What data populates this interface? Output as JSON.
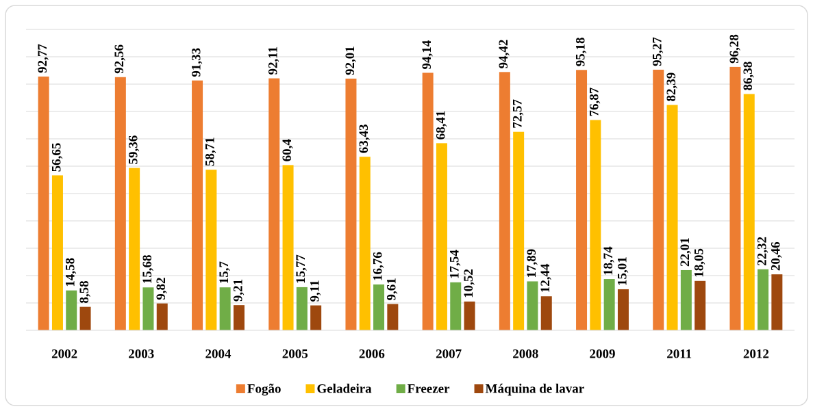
{
  "chart_data": {
    "type": "bar",
    "categories": [
      "2002",
      "2003",
      "2004",
      "2005",
      "2006",
      "2007",
      "2008",
      "2009",
      "2011",
      "2012"
    ],
    "series": [
      {
        "name": "Fogão",
        "color": "#ed7d31",
        "values": [
          92.77,
          92.56,
          91.33,
          92.11,
          92.01,
          94.14,
          94.42,
          95.18,
          95.27,
          96.28
        ],
        "value_labels": [
          "92,77",
          "92,56",
          "91,33",
          "92,11",
          "92,01",
          "94,14",
          "94,42",
          "95,18",
          "95,27",
          "96,28"
        ]
      },
      {
        "name": "Geladeira",
        "color": "#ffc000",
        "values": [
          56.65,
          59.36,
          58.71,
          60.4,
          63.43,
          68.41,
          72.57,
          76.87,
          82.39,
          86.38
        ],
        "value_labels": [
          "56,65",
          "59,36",
          "58,71",
          "60,4",
          "63,43",
          "68,41",
          "72,57",
          "76,87",
          "82,39",
          "86,38"
        ]
      },
      {
        "name": "Freezer",
        "color": "#70ad47",
        "values": [
          14.58,
          15.68,
          15.7,
          15.77,
          16.76,
          17.54,
          17.89,
          18.74,
          22.01,
          22.32
        ],
        "value_labels": [
          "14,58",
          "15,68",
          "15,7",
          "15,77",
          "16,76",
          "17,54",
          "17,89",
          "18,74",
          "22,01",
          "22,32"
        ]
      },
      {
        "name": "Máquina de lavar",
        "color": "#9e480e",
        "values": [
          8.58,
          9.82,
          9.21,
          9.11,
          9.61,
          10.52,
          12.44,
          15.01,
          18.05,
          20.46
        ],
        "value_labels": [
          "8,58",
          "9,82",
          "9,21",
          "9,11",
          "9,61",
          "10,52",
          "12,44",
          "15,01",
          "18,05",
          "20,46"
        ]
      }
    ],
    "ylim": [
      0,
      110
    ],
    "yticks": [
      0,
      10,
      20,
      30,
      40,
      50,
      60,
      70,
      80,
      90,
      100,
      110
    ],
    "grid": true,
    "legend": "bottom"
  }
}
